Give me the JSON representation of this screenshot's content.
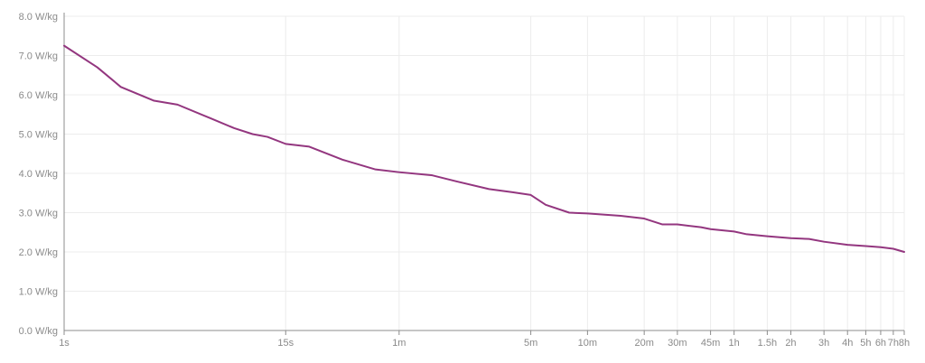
{
  "chart_data": {
    "type": "line",
    "title": "",
    "xlabel": "",
    "ylabel": "",
    "x_scale": "log",
    "x_unit": "seconds",
    "xlim": [
      1,
      28800
    ],
    "ylim": [
      0,
      8
    ],
    "grid": true,
    "legend": "none",
    "y_ticks": [
      {
        "value": 0,
        "label": "0.0 W/kg"
      },
      {
        "value": 1,
        "label": "1.0 W/kg"
      },
      {
        "value": 2,
        "label": "2.0 W/kg"
      },
      {
        "value": 3,
        "label": "3.0 W/kg"
      },
      {
        "value": 4,
        "label": "4.0 W/kg"
      },
      {
        "value": 5,
        "label": "5.0 W/kg"
      },
      {
        "value": 6,
        "label": "6.0 W/kg"
      },
      {
        "value": 7,
        "label": "7.0 W/kg"
      },
      {
        "value": 8,
        "label": "8.0 W/kg"
      }
    ],
    "x_ticks": [
      {
        "value": 1,
        "label": "1s"
      },
      {
        "value": 15,
        "label": "15s"
      },
      {
        "value": 60,
        "label": "1m"
      },
      {
        "value": 300,
        "label": "5m"
      },
      {
        "value": 600,
        "label": "10m"
      },
      {
        "value": 1200,
        "label": "20m"
      },
      {
        "value": 1800,
        "label": "30m"
      },
      {
        "value": 2700,
        "label": "45m"
      },
      {
        "value": 3600,
        "label": "1h"
      },
      {
        "value": 5400,
        "label": "1.5h"
      },
      {
        "value": 7200,
        "label": "2h"
      },
      {
        "value": 10800,
        "label": "3h"
      },
      {
        "value": 14400,
        "label": "4h"
      },
      {
        "value": 18000,
        "label": "5h"
      },
      {
        "value": 21600,
        "label": "6h"
      },
      {
        "value": 25200,
        "label": "7h"
      },
      {
        "value": 28800,
        "label": "8h"
      }
    ],
    "series": [
      {
        "color": "#93367f",
        "x": [
          1,
          1.5,
          2,
          3,
          4,
          6,
          8,
          10,
          12,
          15,
          20,
          30,
          45,
          60,
          90,
          120,
          180,
          240,
          300,
          360,
          480,
          600,
          900,
          1200,
          1500,
          1800,
          2400,
          2700,
          3600,
          4200,
          5400,
          7200,
          9000,
          10800,
          14400,
          18000,
          21600,
          25200,
          28800
        ],
        "y": [
          7.25,
          6.7,
          6.2,
          5.85,
          5.75,
          5.4,
          5.15,
          5.0,
          4.93,
          4.75,
          4.68,
          4.35,
          4.1,
          4.03,
          3.95,
          3.8,
          3.6,
          3.52,
          3.45,
          3.2,
          3.0,
          2.98,
          2.92,
          2.85,
          2.7,
          2.7,
          2.63,
          2.58,
          2.52,
          2.45,
          2.4,
          2.35,
          2.33,
          2.26,
          2.18,
          2.15,
          2.12,
          2.08,
          2.0
        ]
      }
    ]
  }
}
